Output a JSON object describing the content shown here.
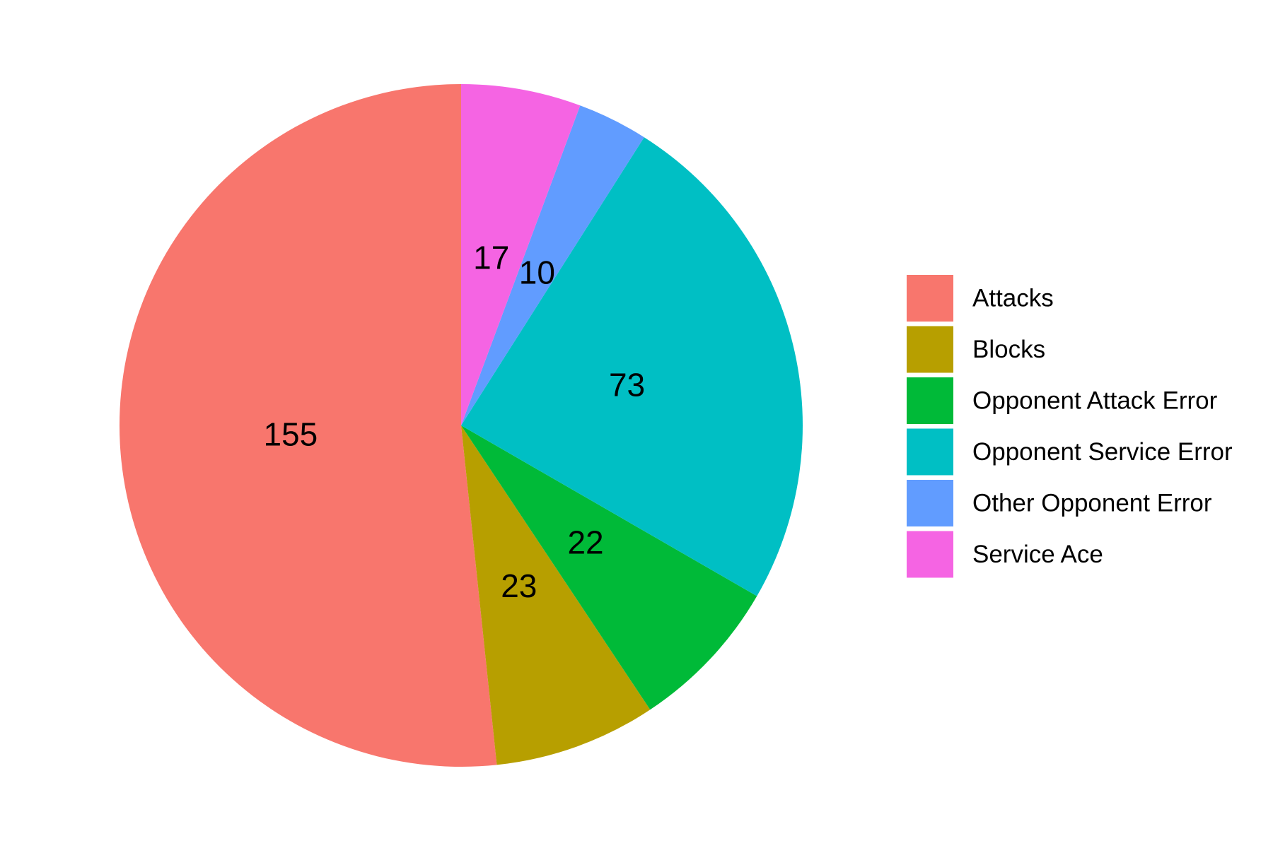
{
  "chart_data": {
    "type": "pie",
    "categories": [
      "Attacks",
      "Blocks",
      "Opponent Attack Error",
      "Opponent Service Error",
      "Other Opponent Error",
      "Service Ace"
    ],
    "values": [
      155,
      23,
      22,
      73,
      10,
      17
    ],
    "data_labels": [
      "155",
      "23",
      "22",
      "73",
      "10",
      "17"
    ],
    "colors": [
      "#F8766D",
      "#B79F00",
      "#00BA38",
      "#00BFC4",
      "#619CFF",
      "#F564E3"
    ],
    "start_angle": "12 o'clock",
    "direction": "counter-clockwise",
    "legend": {
      "position": "right",
      "entries": [
        "Attacks",
        "Blocks",
        "Opponent Attack Error",
        "Opponent Service Error",
        "Other Opponent Error",
        "Service Ace"
      ]
    },
    "title": "",
    "grid": false
  }
}
